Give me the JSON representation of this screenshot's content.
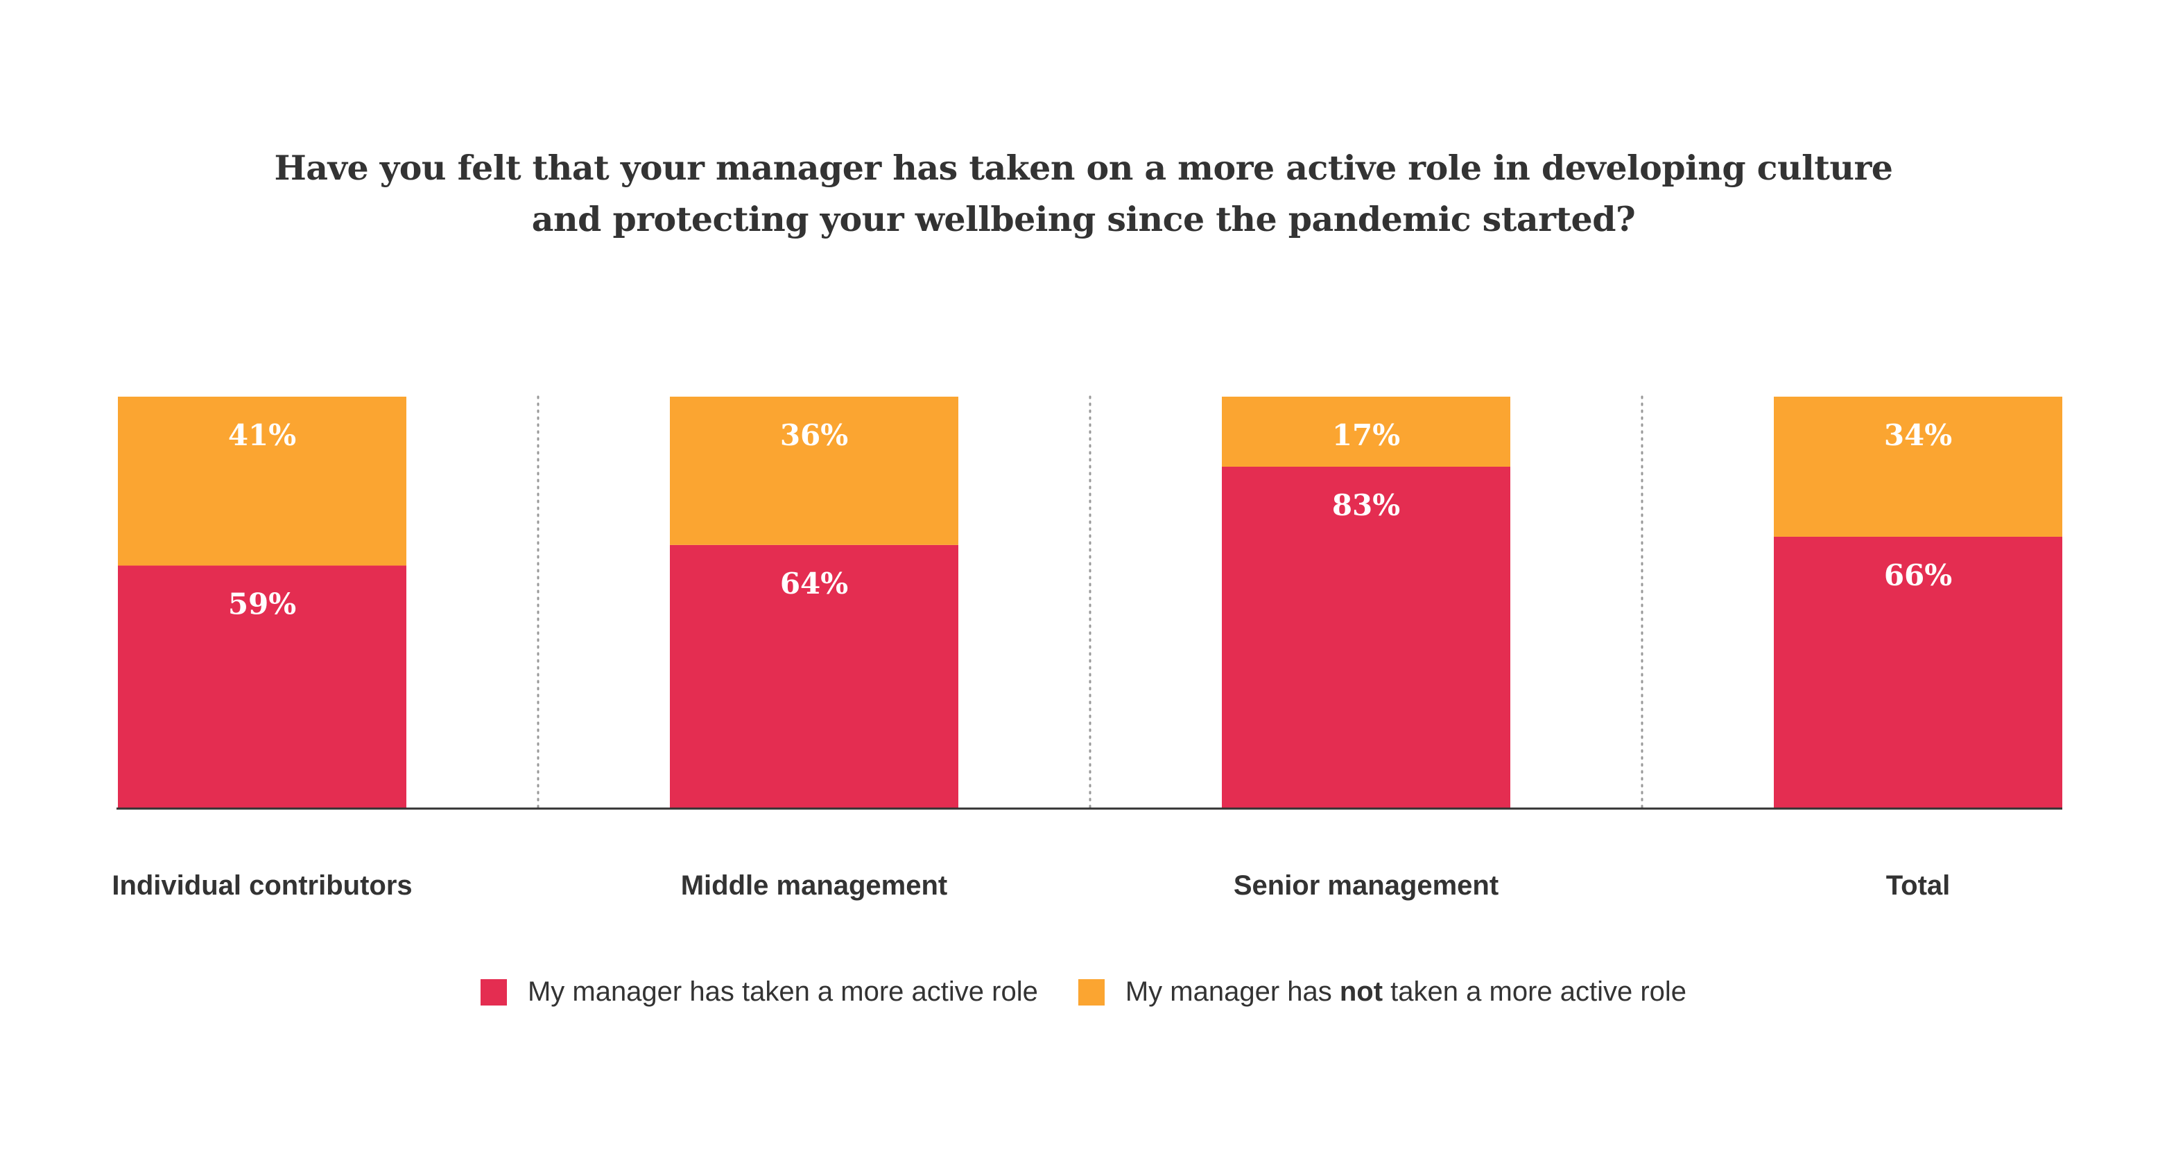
{
  "chart_data": {
    "type": "bar",
    "stacked": true,
    "title": "Have you felt that your manager has taken on a more active role in developing culture and protecting your wellbeing since the pandemic started?",
    "title_lines": [
      "Have you felt that your manager has taken on a more active role in developing culture",
      "and protecting your wellbeing since the pandemic started?"
    ],
    "categories": [
      "Individual contributors",
      "Middle management",
      "Senior management",
      "Total"
    ],
    "series": [
      {
        "name": "My manager has taken a more active role",
        "values": [
          59,
          64,
          83,
          66
        ],
        "labels": [
          "59%",
          "64%",
          "83%",
          "66%"
        ],
        "color": "#E42D51"
      },
      {
        "name": "My manager has not taken a more active role",
        "values": [
          41,
          36,
          17,
          34
        ],
        "labels": [
          "41%",
          "36%",
          "17%",
          "34%"
        ],
        "color": "#FBA531"
      }
    ],
    "ylim": [
      0,
      100
    ],
    "xlabel": "",
    "ylabel": "",
    "grid": false,
    "separators": "dotted vertical lines between categories",
    "legend_position": "bottom",
    "legend": [
      {
        "before": "My manager has taken a more active role",
        "emph": "",
        "after": ""
      },
      {
        "before": "My manager has ",
        "emph": "not",
        "after": " taken a more active role"
      }
    ]
  },
  "colors": {
    "text": "#333333",
    "axis": "#333333",
    "separator": "#999999"
  }
}
